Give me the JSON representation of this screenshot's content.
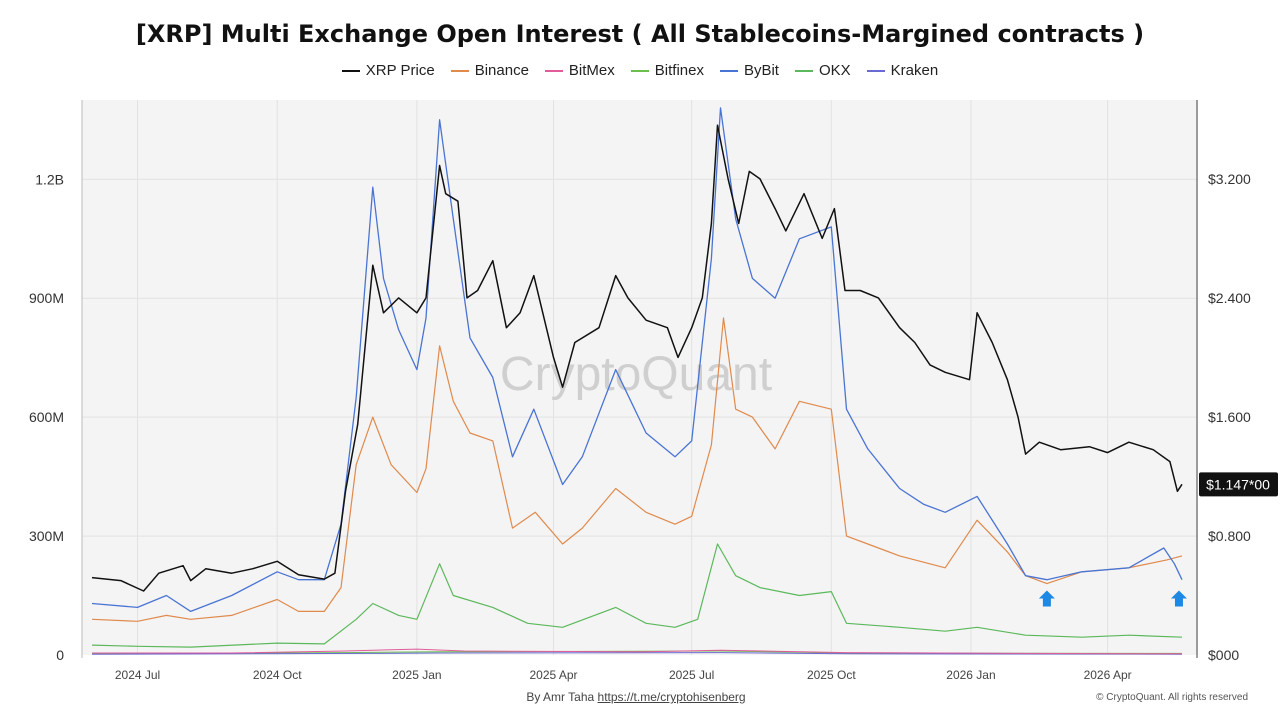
{
  "title": "[XRP] Multi Exchange Open Interest ( All Stablecoins-Margined contracts )",
  "watermark": "CryptoQuant",
  "footer": {
    "by": "By Amr Taha",
    "link": "https://t.me/cryptohisenberg",
    "copyright": "© CryptoQuant. All rights reserved"
  },
  "last_price_label": "$1.147*00",
  "chart_data": {
    "type": "line",
    "title": "[XRP] Multi Exchange Open Interest ( All Stablecoins-Margined contracts )",
    "x_ticks": [
      "2024 Jul",
      "2024 Oct",
      "2025 Jan",
      "2025 Apr",
      "2025 Jul",
      "2025 Oct",
      "2026 Jan",
      "2026 Apr"
    ],
    "x_range": [
      "2024-06-01",
      "2026-05-20"
    ],
    "y_left": {
      "ticks": [
        "0",
        "300M",
        "600M",
        "900M",
        "1.2B"
      ],
      "values": [
        0,
        300000000,
        600000000,
        900000000,
        1200000000
      ],
      "range": [
        0,
        1400000000
      ]
    },
    "y_right": {
      "ticks": [
        "$000",
        "$0.800",
        "$1.600",
        "$2.400",
        "$3.200"
      ],
      "values": [
        0,
        0.8,
        1.6,
        2.4,
        3.2
      ],
      "range": [
        0,
        3.73
      ]
    },
    "grid": true,
    "legend_position": "top-center",
    "markers": [
      {
        "type": "arrow-up",
        "x": "2026-02-20",
        "y": 140000000,
        "color": "#1e88e5"
      },
      {
        "type": "arrow-up",
        "x": "2026-05-18",
        "y": 140000000,
        "color": "#1e88e5"
      }
    ],
    "series": [
      {
        "name": "XRP Price",
        "axis": "right",
        "color": "#111111",
        "width": 1.5,
        "points": [
          [
            "2024-06-01",
            0.52
          ],
          [
            "2024-06-20",
            0.5
          ],
          [
            "2024-07-05",
            0.43
          ],
          [
            "2024-07-15",
            0.55
          ],
          [
            "2024-07-31",
            0.6
          ],
          [
            "2024-08-05",
            0.5
          ],
          [
            "2024-08-15",
            0.58
          ],
          [
            "2024-09-01",
            0.55
          ],
          [
            "2024-09-15",
            0.58
          ],
          [
            "2024-10-01",
            0.63
          ],
          [
            "2024-10-15",
            0.54
          ],
          [
            "2024-11-01",
            0.51
          ],
          [
            "2024-11-08",
            0.55
          ],
          [
            "2024-11-15",
            1.1
          ],
          [
            "2024-11-23",
            1.55
          ],
          [
            "2024-12-03",
            2.62
          ],
          [
            "2024-12-10",
            2.3
          ],
          [
            "2024-12-20",
            2.4
          ],
          [
            "2025-01-01",
            2.3
          ],
          [
            "2025-01-07",
            2.4
          ],
          [
            "2025-01-16",
            3.29
          ],
          [
            "2025-01-20",
            3.1
          ],
          [
            "2025-01-28",
            3.05
          ],
          [
            "2025-02-03",
            2.4
          ],
          [
            "2025-02-10",
            2.45
          ],
          [
            "2025-02-20",
            2.65
          ],
          [
            "2025-03-01",
            2.2
          ],
          [
            "2025-03-10",
            2.3
          ],
          [
            "2025-03-19",
            2.55
          ],
          [
            "2025-04-01",
            2.0
          ],
          [
            "2025-04-07",
            1.8
          ],
          [
            "2025-04-15",
            2.1
          ],
          [
            "2025-05-01",
            2.2
          ],
          [
            "2025-05-12",
            2.55
          ],
          [
            "2025-05-20",
            2.4
          ],
          [
            "2025-06-01",
            2.25
          ],
          [
            "2025-06-15",
            2.2
          ],
          [
            "2025-06-22",
            2.0
          ],
          [
            "2025-07-01",
            2.2
          ],
          [
            "2025-07-08",
            2.4
          ],
          [
            "2025-07-14",
            2.9
          ],
          [
            "2025-07-18",
            3.56
          ],
          [
            "2025-07-25",
            3.2
          ],
          [
            "2025-08-01",
            2.9
          ],
          [
            "2025-08-08",
            3.25
          ],
          [
            "2025-08-15",
            3.2
          ],
          [
            "2025-08-25",
            3.0
          ],
          [
            "2025-09-01",
            2.85
          ],
          [
            "2025-09-13",
            3.1
          ],
          [
            "2025-09-25",
            2.8
          ],
          [
            "2025-10-03",
            3.0
          ],
          [
            "2025-10-10",
            2.45
          ],
          [
            "2025-10-20",
            2.45
          ],
          [
            "2025-11-01",
            2.4
          ],
          [
            "2025-11-15",
            2.2
          ],
          [
            "2025-11-25",
            2.1
          ],
          [
            "2025-12-05",
            1.95
          ],
          [
            "2025-12-15",
            1.9
          ],
          [
            "2025-12-31",
            1.85
          ],
          [
            "2026-01-05",
            2.3
          ],
          [
            "2026-01-15",
            2.1
          ],
          [
            "2026-01-25",
            1.85
          ],
          [
            "2026-02-01",
            1.6
          ],
          [
            "2026-02-06",
            1.35
          ],
          [
            "2026-02-15",
            1.43
          ],
          [
            "2026-03-01",
            1.38
          ],
          [
            "2026-03-20",
            1.4
          ],
          [
            "2026-04-01",
            1.36
          ],
          [
            "2026-04-15",
            1.43
          ],
          [
            "2026-05-01",
            1.38
          ],
          [
            "2026-05-12",
            1.3
          ],
          [
            "2026-05-17",
            1.1
          ],
          [
            "2026-05-20",
            1.147
          ]
        ]
      },
      {
        "name": "Binance",
        "axis": "left",
        "color": "#e08a4c",
        "width": 1.2,
        "points": [
          [
            "2024-06-01",
            90000000
          ],
          [
            "2024-07-01",
            85000000
          ],
          [
            "2024-07-20",
            100000000
          ],
          [
            "2024-08-05",
            90000000
          ],
          [
            "2024-09-01",
            100000000
          ],
          [
            "2024-10-01",
            140000000
          ],
          [
            "2024-10-15",
            110000000
          ],
          [
            "2024-11-01",
            110000000
          ],
          [
            "2024-11-12",
            170000000
          ],
          [
            "2024-11-22",
            480000000
          ],
          [
            "2024-12-03",
            600000000
          ],
          [
            "2024-12-15",
            480000000
          ],
          [
            "2025-01-01",
            410000000
          ],
          [
            "2025-01-07",
            470000000
          ],
          [
            "2025-01-16",
            780000000
          ],
          [
            "2025-01-25",
            640000000
          ],
          [
            "2025-02-05",
            560000000
          ],
          [
            "2025-02-20",
            540000000
          ],
          [
            "2025-03-05",
            320000000
          ],
          [
            "2025-03-20",
            360000000
          ],
          [
            "2025-04-07",
            280000000
          ],
          [
            "2025-04-20",
            320000000
          ],
          [
            "2025-05-12",
            420000000
          ],
          [
            "2025-06-01",
            360000000
          ],
          [
            "2025-06-20",
            330000000
          ],
          [
            "2025-07-01",
            350000000
          ],
          [
            "2025-07-14",
            530000000
          ],
          [
            "2025-07-22",
            850000000
          ],
          [
            "2025-07-30",
            620000000
          ],
          [
            "2025-08-10",
            600000000
          ],
          [
            "2025-08-25",
            520000000
          ],
          [
            "2025-09-10",
            640000000
          ],
          [
            "2025-10-01",
            620000000
          ],
          [
            "2025-10-11",
            300000000
          ],
          [
            "2025-10-25",
            280000000
          ],
          [
            "2025-11-15",
            250000000
          ],
          [
            "2025-12-15",
            220000000
          ],
          [
            "2026-01-05",
            340000000
          ],
          [
            "2026-01-25",
            260000000
          ],
          [
            "2026-02-06",
            200000000
          ],
          [
            "2026-02-20",
            180000000
          ],
          [
            "2026-03-15",
            210000000
          ],
          [
            "2026-04-15",
            220000000
          ],
          [
            "2026-05-10",
            240000000
          ],
          [
            "2026-05-20",
            250000000
          ]
        ]
      },
      {
        "name": "BitMex",
        "axis": "left",
        "color": "#e05c9a",
        "width": 1,
        "points": [
          [
            "2024-06-01",
            5000000
          ],
          [
            "2024-09-01",
            5000000
          ],
          [
            "2024-11-15",
            10000000
          ],
          [
            "2025-01-01",
            15000000
          ],
          [
            "2025-02-01",
            10000000
          ],
          [
            "2025-06-01",
            8000000
          ],
          [
            "2025-07-20",
            12000000
          ],
          [
            "2025-10-11",
            6000000
          ],
          [
            "2026-02-01",
            4000000
          ],
          [
            "2026-05-20",
            3000000
          ]
        ]
      },
      {
        "name": "Bitfinex",
        "axis": "left",
        "color": "#6bbf4e",
        "width": 1,
        "points": [
          [
            "2024-06-01",
            3000000
          ],
          [
            "2024-11-15",
            6000000
          ],
          [
            "2025-01-16",
            8000000
          ],
          [
            "2025-07-20",
            10000000
          ],
          [
            "2025-10-11",
            5000000
          ],
          [
            "2026-05-20",
            4000000
          ]
        ]
      },
      {
        "name": "ByBit",
        "axis": "left",
        "color": "#4a74d4",
        "width": 1.3,
        "points": [
          [
            "2024-06-01",
            130000000
          ],
          [
            "2024-07-01",
            120000000
          ],
          [
            "2024-07-20",
            150000000
          ],
          [
            "2024-08-05",
            110000000
          ],
          [
            "2024-09-01",
            150000000
          ],
          [
            "2024-10-01",
            210000000
          ],
          [
            "2024-10-15",
            190000000
          ],
          [
            "2024-11-01",
            190000000
          ],
          [
            "2024-11-12",
            330000000
          ],
          [
            "2024-11-22",
            650000000
          ],
          [
            "2024-12-03",
            1180000000
          ],
          [
            "2024-12-10",
            950000000
          ],
          [
            "2024-12-20",
            820000000
          ],
          [
            "2025-01-01",
            720000000
          ],
          [
            "2025-01-07",
            850000000
          ],
          [
            "2025-01-16",
            1350000000
          ],
          [
            "2025-01-25",
            1100000000
          ],
          [
            "2025-02-05",
            800000000
          ],
          [
            "2025-02-20",
            700000000
          ],
          [
            "2025-03-05",
            500000000
          ],
          [
            "2025-03-19",
            620000000
          ],
          [
            "2025-04-07",
            430000000
          ],
          [
            "2025-04-20",
            500000000
          ],
          [
            "2025-05-12",
            720000000
          ],
          [
            "2025-06-01",
            560000000
          ],
          [
            "2025-06-20",
            500000000
          ],
          [
            "2025-07-01",
            540000000
          ],
          [
            "2025-07-14",
            1000000000
          ],
          [
            "2025-07-20",
            1380000000
          ],
          [
            "2025-07-30",
            1100000000
          ],
          [
            "2025-08-10",
            950000000
          ],
          [
            "2025-08-25",
            900000000
          ],
          [
            "2025-09-10",
            1050000000
          ],
          [
            "2025-10-01",
            1080000000
          ],
          [
            "2025-10-11",
            620000000
          ],
          [
            "2025-10-25",
            520000000
          ],
          [
            "2025-11-15",
            420000000
          ],
          [
            "2025-12-01",
            380000000
          ],
          [
            "2025-12-15",
            360000000
          ],
          [
            "2026-01-05",
            400000000
          ],
          [
            "2026-01-25",
            280000000
          ],
          [
            "2026-02-06",
            200000000
          ],
          [
            "2026-02-20",
            190000000
          ],
          [
            "2026-03-15",
            210000000
          ],
          [
            "2026-04-15",
            220000000
          ],
          [
            "2026-05-08",
            270000000
          ],
          [
            "2026-05-15",
            230000000
          ],
          [
            "2026-05-20",
            190000000
          ]
        ]
      },
      {
        "name": "OKX",
        "axis": "left",
        "color": "#5cb85c",
        "width": 1.2,
        "points": [
          [
            "2024-06-01",
            25000000
          ],
          [
            "2024-07-01",
            22000000
          ],
          [
            "2024-08-05",
            20000000
          ],
          [
            "2024-10-01",
            30000000
          ],
          [
            "2024-11-01",
            28000000
          ],
          [
            "2024-11-22",
            90000000
          ],
          [
            "2024-12-03",
            130000000
          ],
          [
            "2024-12-20",
            100000000
          ],
          [
            "2025-01-01",
            90000000
          ],
          [
            "2025-01-16",
            230000000
          ],
          [
            "2025-01-25",
            150000000
          ],
          [
            "2025-02-20",
            120000000
          ],
          [
            "2025-03-15",
            80000000
          ],
          [
            "2025-04-07",
            70000000
          ],
          [
            "2025-05-12",
            120000000
          ],
          [
            "2025-06-01",
            80000000
          ],
          [
            "2025-06-20",
            70000000
          ],
          [
            "2025-07-05",
            90000000
          ],
          [
            "2025-07-18",
            280000000
          ],
          [
            "2025-07-30",
            200000000
          ],
          [
            "2025-08-15",
            170000000
          ],
          [
            "2025-09-10",
            150000000
          ],
          [
            "2025-10-01",
            160000000
          ],
          [
            "2025-10-11",
            80000000
          ],
          [
            "2025-11-15",
            70000000
          ],
          [
            "2025-12-15",
            60000000
          ],
          [
            "2026-01-05",
            70000000
          ],
          [
            "2026-02-06",
            50000000
          ],
          [
            "2026-03-15",
            45000000
          ],
          [
            "2026-04-15",
            50000000
          ],
          [
            "2026-05-20",
            45000000
          ]
        ]
      },
      {
        "name": "Kraken",
        "axis": "left",
        "color": "#6a6ad4",
        "width": 1,
        "points": [
          [
            "2024-06-01",
            2000000
          ],
          [
            "2024-12-01",
            4000000
          ],
          [
            "2025-01-16",
            5000000
          ],
          [
            "2025-07-20",
            6000000
          ],
          [
            "2025-10-11",
            3000000
          ],
          [
            "2026-05-20",
            2000000
          ]
        ]
      }
    ]
  }
}
